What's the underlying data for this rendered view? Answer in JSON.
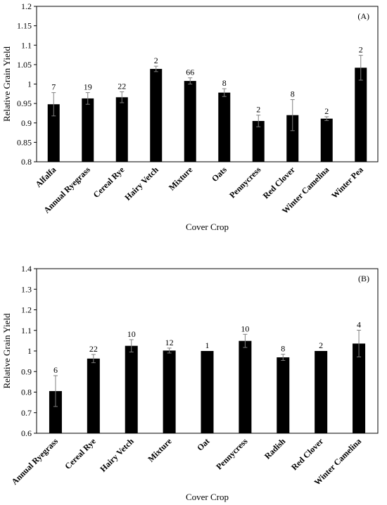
{
  "chart_data": [
    {
      "type": "bar",
      "panel_label": "(A)",
      "xlabel": "Cover Crop",
      "ylabel": "Relative Grain Yield",
      "ylim": [
        0.8,
        1.2
      ],
      "ytick_step": 0.05,
      "yticks": [
        "0.8",
        "0.85",
        "0.9",
        "0.95",
        "1",
        "1.05",
        "1.1",
        "1.15",
        "1.2"
      ],
      "categories": [
        "Alfalfa",
        "Annual Ryegrass",
        "Cereal Rye",
        "Hairy Vetch",
        "Mixture",
        "Oats",
        "Pennycress",
        "Red Clover",
        "Winter Camelina",
        "Winter Pea"
      ],
      "values": [
        0.948,
        0.963,
        0.966,
        1.039,
        1.008,
        0.978,
        0.905,
        0.92,
        0.911,
        1.042
      ],
      "errors": [
        0.03,
        0.015,
        0.014,
        0.007,
        0.008,
        0.01,
        0.015,
        0.04,
        0.005,
        0.032
      ],
      "n_labels": [
        "7",
        "19",
        "22",
        "2",
        "66",
        "8",
        "2",
        "8",
        "2",
        "2"
      ],
      "grid": false,
      "bar_color": "#000000",
      "error_color": "#7f7f7f"
    },
    {
      "type": "bar",
      "panel_label": "(B)",
      "xlabel": "Cover Crop",
      "ylabel": "Relative Grain Yield",
      "ylim": [
        0.6,
        1.4
      ],
      "ytick_step": 0.1,
      "yticks": [
        "0.6",
        "0.7",
        "0.8",
        "0.9",
        "1",
        "1.1",
        "1.2",
        "1.3",
        "1.4"
      ],
      "categories": [
        "Annual Ryegrass",
        "Cereal Rye",
        "Hairy Vetch",
        "Mixture",
        "Oat",
        "Pennycress",
        "Radish",
        "Red Clover",
        "Winter Camelina"
      ],
      "values": [
        0.805,
        0.963,
        1.025,
        1.002,
        1.0,
        1.049,
        0.969,
        1.0,
        1.036
      ],
      "errors": [
        0.075,
        0.02,
        0.03,
        0.012,
        0.0,
        0.032,
        0.015,
        0.0,
        0.065
      ],
      "n_labels": [
        "6",
        "22",
        "10",
        "12",
        "1",
        "10",
        "8",
        "2",
        "4"
      ],
      "grid": false,
      "bar_color": "#000000",
      "error_color": "#7f7f7f"
    }
  ]
}
